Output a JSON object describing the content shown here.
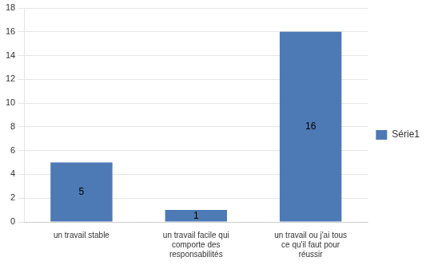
{
  "chart_data": {
    "type": "bar",
    "categories": [
      "un travail stable",
      "un travail facile qui\ncomporte des\nresponsabilités",
      "un travail ou j'ai tous\nce qu'il faut pour\nréussir"
    ],
    "series": [
      {
        "name": "Série1",
        "color": "#4d7ab5",
        "values": [
          5,
          1,
          16
        ]
      }
    ],
    "ylim": [
      0,
      18
    ],
    "yticks": [
      0,
      2,
      4,
      6,
      8,
      10,
      12,
      14,
      16,
      18
    ],
    "grid": true,
    "legend": "right",
    "data_labels": true
  }
}
